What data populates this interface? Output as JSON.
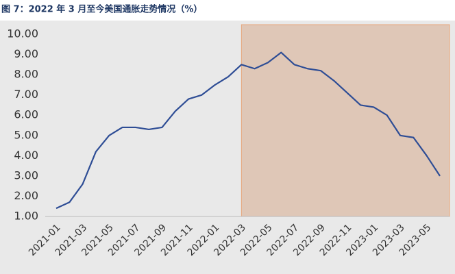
{
  "chart_data": {
    "type": "line",
    "title": "图 7：2022 年 3 月至今美国通胀走势情况（%）",
    "categories": [
      "2021-01",
      null,
      "2021-03",
      null,
      "2021-05",
      null,
      "2021-07",
      null,
      "2021-09",
      null,
      "2021-11",
      null,
      "2022-01",
      null,
      "2022-03",
      null,
      "2022-05",
      null,
      "2022-07",
      null,
      "2022-09",
      null,
      "2022-11",
      null,
      "2023-01",
      null,
      "2023-03",
      null,
      "2023-05",
      null
    ],
    "series": [
      {
        "color": "#2e4d95",
        "values": [
          1.4,
          1.7,
          2.6,
          4.2,
          5.0,
          5.4,
          5.4,
          5.3,
          5.4,
          6.2,
          6.8,
          7.0,
          7.5,
          7.9,
          8.5,
          8.3,
          8.6,
          9.1,
          8.5,
          8.3,
          8.2,
          7.7,
          7.1,
          6.5,
          6.4,
          6.0,
          5.0,
          4.9,
          4.0,
          3.0
        ]
      }
    ],
    "ylim": [
      1,
      10
    ],
    "yticks": [
      {
        "value": 1,
        "label": "1.00"
      },
      {
        "value": 2,
        "label": "2.00"
      },
      {
        "value": 3,
        "label": "3.00"
      },
      {
        "value": 4,
        "label": "4.00"
      },
      {
        "value": 5,
        "label": "5.00"
      },
      {
        "value": 6,
        "label": "6.00"
      },
      {
        "value": 7,
        "label": "7.00"
      },
      {
        "value": 8,
        "label": "8.00"
      },
      {
        "value": 9,
        "label": "9.00"
      },
      {
        "value": 10,
        "label": "10.00"
      }
    ],
    "highlight": {
      "from": "2022-03",
      "color": "#dfc7b7",
      "border": "#e8a67a"
    },
    "grid": false
  }
}
